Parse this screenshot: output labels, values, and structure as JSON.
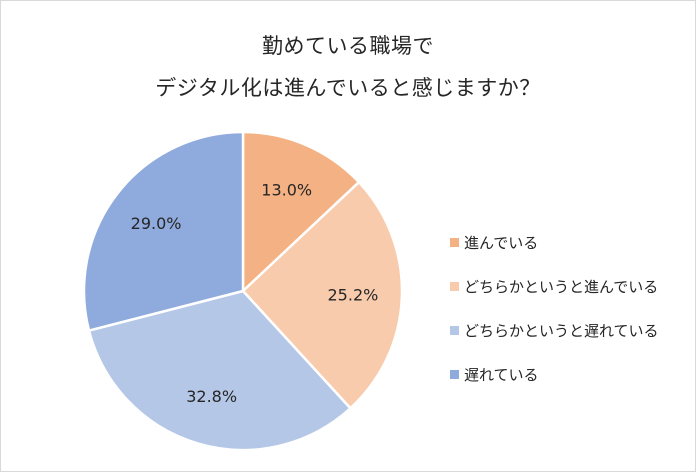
{
  "chart_data": {
    "type": "pie",
    "title_lines": [
      "勤めている職場で",
      "デジタル化は進んでいると感じますか？"
    ],
    "series": [
      {
        "name": "進んでいる",
        "value": 13.0,
        "label": "13.0%",
        "color": "#f4b183"
      },
      {
        "name": "どちらかというと進んでいる",
        "value": 25.2,
        "label": "25.2%",
        "color": "#f8cbad"
      },
      {
        "name": "どちらかというと遅れている",
        "value": 32.8,
        "label": "32.8%",
        "color": "#b4c7e7"
      },
      {
        "name": "遅れている",
        "value": 29.0,
        "label": "29.0%",
        "color": "#8faadc"
      }
    ],
    "start": "12 o'clock",
    "direction": "clockwise",
    "legend_position": "right"
  }
}
